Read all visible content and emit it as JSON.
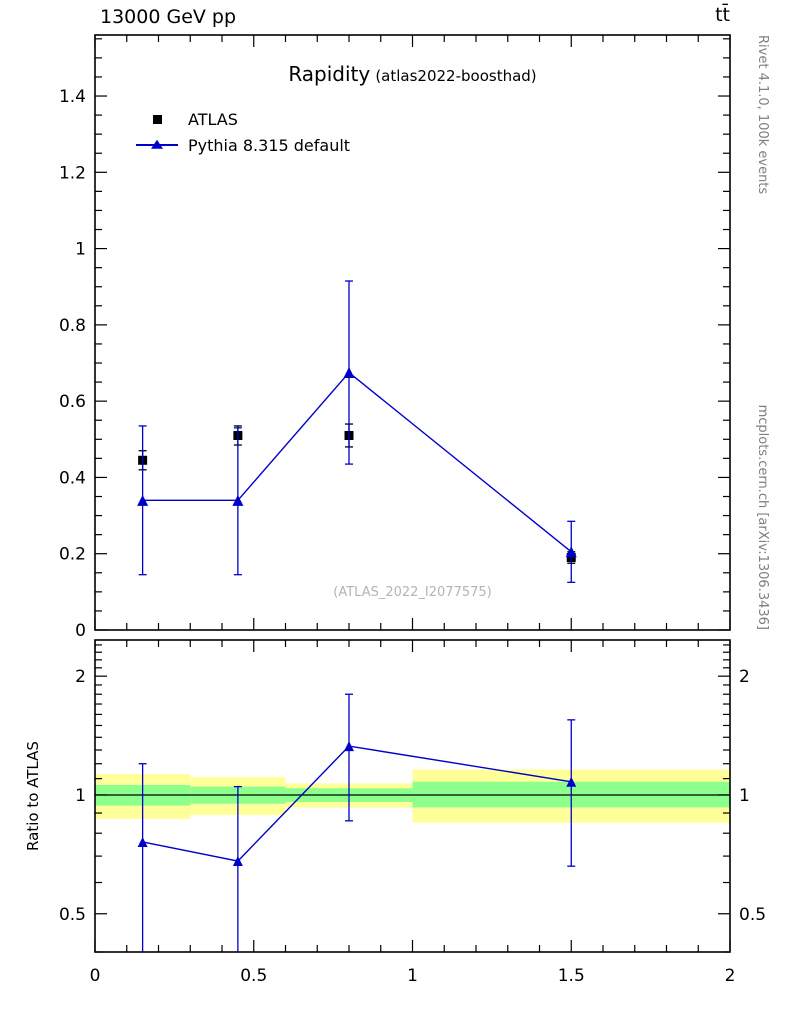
{
  "header": {
    "left": "13000 GeV pp",
    "right": "tt̄"
  },
  "title": {
    "main": "Rapidity",
    "sub": "(atlas2022-boosthad)"
  },
  "watermark": "(ATLAS_2022_I2077575)",
  "side_labels": {
    "rivet": "Rivet 4.1.0, 100k events",
    "mcplots": "mcplots.cern.ch [arXiv:1306.3436]"
  },
  "legend": {
    "items": [
      {
        "label": "ATLAS",
        "marker": "square",
        "color": "#000000"
      },
      {
        "label": "Pythia 8.315 default",
        "marker": "triangle-line",
        "color": "#0000cc"
      }
    ]
  },
  "colors": {
    "pythia": "#0000cc",
    "atlas": "#000000",
    "band_yellow": "#ffff99",
    "band_green": "#8dff8d",
    "frame": "#000000",
    "watermark": "#b4b4b4",
    "side_text": "#7f7f7f"
  },
  "chart_data": [
    {
      "type": "scatter",
      "title": "Rapidity (atlas2022-boosthad)",
      "xlabel": "",
      "ylabel": "",
      "xlim": [
        0,
        2
      ],
      "ylim": [
        0,
        1.56
      ],
      "grid": false,
      "legend_position": "top-left",
      "yticks": [
        {
          "v": 0,
          "label": "0"
        },
        {
          "v": 0.2,
          "label": "0.2"
        },
        {
          "v": 0.4,
          "label": "0.4"
        },
        {
          "v": 0.6,
          "label": "0.6"
        },
        {
          "v": 0.8,
          "label": "0.8"
        },
        {
          "v": 1,
          "label": "1"
        },
        {
          "v": 1.2,
          "label": "1.2"
        },
        {
          "v": 1.4,
          "label": "1.4"
        }
      ],
      "yminor_step": 0.05,
      "xminor_step": 0.1,
      "xticks": [
        0,
        0.5,
        1,
        1.5,
        2
      ],
      "series": [
        {
          "name": "ATLAS",
          "marker": "square",
          "color": "#000000",
          "connect": false,
          "points": [
            {
              "x": 0.15,
              "y": 0.445,
              "ylo": 0.42,
              "yhi": 0.47
            },
            {
              "x": 0.45,
              "y": 0.51,
              "ylo": 0.485,
              "yhi": 0.535
            },
            {
              "x": 0.8,
              "y": 0.51,
              "ylo": 0.48,
              "yhi": 0.54
            },
            {
              "x": 1.5,
              "y": 0.19,
              "ylo": 0.175,
              "yhi": 0.205
            }
          ]
        },
        {
          "name": "Pythia 8.315 default",
          "marker": "triangle",
          "color": "#0000cc",
          "connect": true,
          "points": [
            {
              "x": 0.15,
              "y": 0.34,
              "ylo": 0.145,
              "yhi": 0.535
            },
            {
              "x": 0.45,
              "y": 0.34,
              "ylo": 0.145,
              "yhi": 0.53
            },
            {
              "x": 0.8,
              "y": 0.675,
              "ylo": 0.435,
              "yhi": 0.915
            },
            {
              "x": 1.5,
              "y": 0.205,
              "ylo": 0.125,
              "yhi": 0.285
            }
          ]
        }
      ]
    },
    {
      "type": "ratio",
      "ylabel": "Ratio to ATLAS",
      "xlim": [
        0,
        2
      ],
      "ylim": [
        0.4,
        2.47
      ],
      "yscale": "log",
      "ref_line": 1,
      "yticks": [
        {
          "v": 0.5,
          "label": "0.5"
        },
        {
          "v": 1,
          "label": "1"
        },
        {
          "v": 2,
          "label": "2"
        }
      ],
      "yminors": [
        0.4,
        0.6,
        0.7,
        0.8,
        0.9,
        1.1,
        1.2,
        1.3,
        1.4,
        1.5,
        1.6,
        1.7,
        1.8,
        1.9,
        2.1,
        2.2,
        2.3,
        2.4
      ],
      "xticks": [
        {
          "v": 0,
          "label": "0"
        },
        {
          "v": 0.5,
          "label": "0.5"
        },
        {
          "v": 1,
          "label": "1"
        },
        {
          "v": 1.5,
          "label": "1.5"
        },
        {
          "v": 2,
          "label": "2"
        }
      ],
      "xminor_step": 0.1,
      "bands": [
        {
          "xlo": 0,
          "xhi": 0.3,
          "yellow": [
            0.87,
            1.13
          ],
          "green": [
            0.94,
            1.06
          ]
        },
        {
          "xlo": 0.3,
          "xhi": 0.6,
          "yellow": [
            0.89,
            1.11
          ],
          "green": [
            0.95,
            1.05
          ]
        },
        {
          "xlo": 0.6,
          "xhi": 1.0,
          "yellow": [
            0.93,
            1.07
          ],
          "green": [
            0.96,
            1.04
          ]
        },
        {
          "xlo": 1.0,
          "xhi": 2.0,
          "yellow": [
            0.85,
            1.16
          ],
          "green": [
            0.93,
            1.08
          ]
        }
      ],
      "series": [
        {
          "name": "Pythia 8.315 default / ATLAS",
          "marker": "triangle",
          "color": "#0000cc",
          "connect": true,
          "points": [
            {
              "x": 0.15,
              "y": 0.76,
              "ylo": 0.32,
              "yhi": 1.2
            },
            {
              "x": 0.45,
              "y": 0.68,
              "ylo": 0.3,
              "yhi": 1.05
            },
            {
              "x": 0.8,
              "y": 1.33,
              "ylo": 0.86,
              "yhi": 1.8
            },
            {
              "x": 1.5,
              "y": 1.08,
              "ylo": 0.66,
              "yhi": 1.55
            }
          ]
        }
      ]
    }
  ]
}
